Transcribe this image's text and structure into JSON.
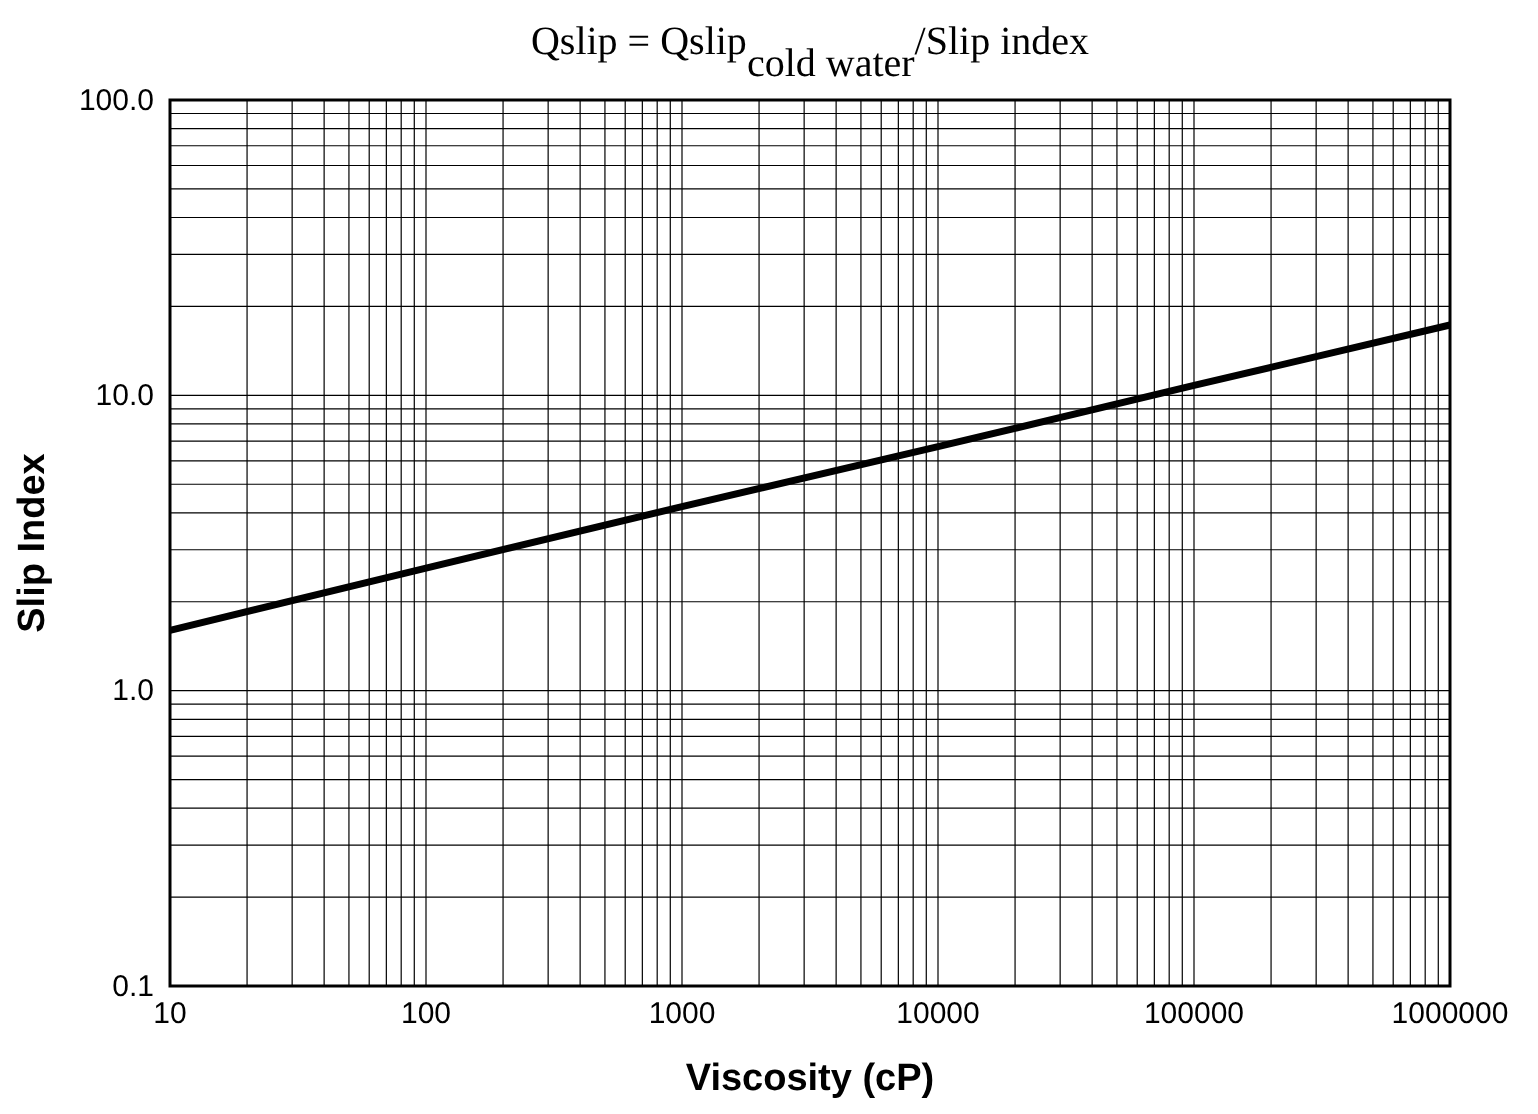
{
  "chart_data": {
    "type": "line",
    "title": "Qslip = Qslip$_{cold water}$/Slip index",
    "xlabel": "Viscosity (cP)",
    "ylabel": "Slip Index",
    "log": "xy",
    "grid": true,
    "x": [
      10,
      100,
      1000,
      10000,
      100000,
      1000000
    ],
    "series": [
      {
        "color": "#000000",
        "values": [
          1.6,
          2.6,
          4.2,
          6.7,
          10.8,
          17.3
        ]
      }
    ],
    "xlim": [
      10,
      1000000
    ],
    "ylim": [
      0.1,
      100
    ],
    "xticks": [
      10,
      {
        "value": 20,
        "label": null
      },
      {
        "value": 30,
        "label": null
      },
      {
        "value": 40,
        "label": null
      },
      {
        "value": 50,
        "label": null
      },
      {
        "value": 60,
        "label": null
      },
      {
        "value": 70,
        "label": null
      },
      {
        "value": 80,
        "label": null
      },
      {
        "value": 90,
        "label": null
      },
      100,
      {
        "value": 200,
        "label": null
      },
      {
        "value": 300,
        "label": null
      },
      {
        "value": 400,
        "label": null
      },
      {
        "value": 500,
        "label": null
      },
      {
        "value": 600,
        "label": null
      },
      {
        "value": 700,
        "label": null
      },
      {
        "value": 800,
        "label": null
      },
      {
        "value": 900,
        "label": null
      },
      1000,
      {
        "value": 2000,
        "label": null
      },
      {
        "value": 3000,
        "label": null
      },
      {
        "value": 4000,
        "label": null
      },
      {
        "value": 5000,
        "label": null
      },
      {
        "value": 6000,
        "label": null
      },
      {
        "value": 7000,
        "label": null
      },
      {
        "value": 8000,
        "label": null
      },
      {
        "value": 9000,
        "label": null
      },
      10000,
      {
        "value": 20000,
        "label": null
      },
      {
        "value": 30000,
        "label": null
      },
      {
        "value": 40000,
        "label": null
      },
      {
        "value": 50000,
        "label": null
      },
      {
        "value": 60000,
        "label": null
      },
      {
        "value": 70000,
        "label": null
      },
      {
        "value": 80000,
        "label": null
      },
      {
        "value": 90000,
        "label": null
      },
      100000,
      {
        "value": 200000,
        "label": null
      },
      {
        "value": 300000,
        "label": null
      },
      {
        "value": 400000,
        "label": null
      },
      {
        "value": 500000,
        "label": null
      },
      {
        "value": 600000,
        "label": null
      },
      {
        "value": 700000,
        "label": null
      },
      {
        "value": 800000,
        "label": null
      },
      {
        "value": 900000,
        "label": null
      },
      1000000
    ],
    "yticks": [
      {
        "value": 0.1,
        "label": "0.1"
      },
      {
        "value": 0.2,
        "label": null
      },
      {
        "value": 0.3,
        "label": null
      },
      {
        "value": 0.4,
        "label": null
      },
      {
        "value": 0.5,
        "label": null
      },
      {
        "value": 0.6,
        "label": null
      },
      {
        "value": 0.7,
        "label": null
      },
      {
        "value": 0.8,
        "label": null
      },
      {
        "value": 0.9,
        "label": null
      },
      {
        "value": 1,
        "label": "1.0"
      },
      {
        "value": 2,
        "label": null
      },
      {
        "value": 3,
        "label": null
      },
      {
        "value": 4,
        "label": null
      },
      {
        "value": 5,
        "label": null
      },
      {
        "value": 6,
        "label": null
      },
      {
        "value": 7,
        "label": null
      },
      {
        "value": 8,
        "label": null
      },
      {
        "value": 9,
        "label": null
      },
      {
        "value": 10,
        "label": "10.0"
      },
      {
        "value": 20,
        "label": null
      },
      {
        "value": 30,
        "label": null
      },
      {
        "value": 40,
        "label": null
      },
      {
        "value": 50,
        "label": null
      },
      {
        "value": 60,
        "label": null
      },
      {
        "value": 70,
        "label": null
      },
      {
        "value": 80,
        "label": null
      },
      {
        "value": 90,
        "label": null
      },
      {
        "value": 100,
        "label": "100.0"
      }
    ],
    "line_style": "solid",
    "marker": "none"
  }
}
